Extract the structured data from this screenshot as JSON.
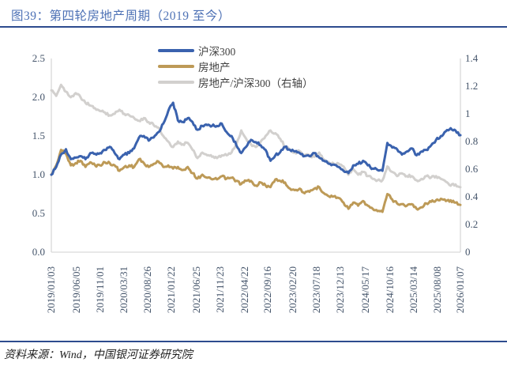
{
  "header": {
    "title": "图39：第四轮房地产周期（2019 至今）"
  },
  "footer": {
    "source": "资料来源：Wind，中国银河证券研究院"
  },
  "colors": {
    "title_blue": "#4d71b5",
    "rule_blue": "#2d4b8e",
    "axis_text": "#44546a",
    "axis_line": "#d9d9d9"
  },
  "chart_data": {
    "type": "line",
    "title": "第四轮房地产周期（2019 至今）",
    "grid": false,
    "legend_position": "top-center",
    "left_axis": {
      "range": [
        0,
        2.5
      ],
      "ticks": [
        "2.5",
        "2.0",
        "1.5",
        "1.0",
        "0.5",
        "0.0"
      ]
    },
    "right_axis": {
      "range": [
        0,
        1.4
      ],
      "ticks": [
        "1.4",
        "1.2",
        "1",
        "0.8",
        "0.6",
        "0.4",
        "0.2",
        "0"
      ]
    },
    "x_axis": {
      "start": "2019-01",
      "end": "2026-01",
      "interval": "monthly",
      "tick_labels": [
        "2019/01/03",
        "2019/06/05",
        "2019/11/01",
        "2020/03/31",
        "2020/08/26",
        "2021/01/22",
        "2021/06/25",
        "2021/11/23",
        "2022/04/22",
        "2022/09/16",
        "2023/02/20",
        "2023/07/18",
        "2023/12/13",
        "2024/05/17",
        "2024/10/16",
        "2025/03/14",
        "2025/08/08",
        "2026/01/07"
      ]
    },
    "series": [
      {
        "id": "csi300",
        "name": "沪深300",
        "axis": "left",
        "color": "#3a62ae",
        "values": [
          1.0,
          1.1,
          1.26,
          1.33,
          1.2,
          1.22,
          1.24,
          1.2,
          1.28,
          1.27,
          1.28,
          1.32,
          1.36,
          1.28,
          1.2,
          1.26,
          1.28,
          1.34,
          1.48,
          1.5,
          1.44,
          1.48,
          1.55,
          1.66,
          1.82,
          1.93,
          1.7,
          1.68,
          1.73,
          1.68,
          1.58,
          1.63,
          1.64,
          1.63,
          1.63,
          1.66,
          1.55,
          1.5,
          1.38,
          1.28,
          1.36,
          1.45,
          1.42,
          1.38,
          1.32,
          1.18,
          1.25,
          1.29,
          1.36,
          1.32,
          1.3,
          1.28,
          1.24,
          1.24,
          1.28,
          1.22,
          1.18,
          1.14,
          1.13,
          1.1,
          1.05,
          1.02,
          1.12,
          1.14,
          1.18,
          1.12,
          1.08,
          1.06,
          1.05,
          1.41,
          1.35,
          1.33,
          1.26,
          1.3,
          1.34,
          1.25,
          1.3,
          1.32,
          1.38,
          1.45,
          1.5,
          1.56,
          1.6,
          1.57,
          1.51
        ]
      },
      {
        "id": "real-estate",
        "name": "房地产",
        "axis": "left",
        "color": "#bd9a57",
        "values": [
          1.0,
          1.12,
          1.32,
          1.27,
          1.12,
          1.15,
          1.18,
          1.1,
          1.16,
          1.12,
          1.12,
          1.16,
          1.15,
          1.12,
          1.05,
          1.1,
          1.12,
          1.1,
          1.2,
          1.15,
          1.1,
          1.14,
          1.17,
          1.1,
          1.12,
          1.08,
          1.1,
          1.06,
          1.1,
          1.02,
          0.95,
          1.0,
          0.96,
          0.94,
          0.94,
          0.98,
          0.95,
          0.96,
          0.92,
          0.88,
          0.92,
          0.92,
          0.86,
          0.9,
          0.86,
          0.84,
          0.94,
          0.92,
          0.9,
          0.82,
          0.8,
          0.82,
          0.76,
          0.78,
          0.82,
          0.84,
          0.76,
          0.72,
          0.72,
          0.7,
          0.64,
          0.56,
          0.64,
          0.6,
          0.66,
          0.6,
          0.56,
          0.53,
          0.52,
          0.75,
          0.68,
          0.63,
          0.62,
          0.6,
          0.62,
          0.56,
          0.58,
          0.63,
          0.65,
          0.67,
          0.69,
          0.66,
          0.67,
          0.64,
          0.61
        ]
      },
      {
        "id": "re-over-csi300",
        "name": "房地产/沪深300（右轴）",
        "axis": "right",
        "color": "#d2d0ce",
        "values": [
          1.17,
          1.13,
          1.21,
          1.16,
          1.12,
          1.15,
          1.12,
          1.08,
          1.06,
          1.04,
          1.02,
          1.01,
          0.99,
          1.0,
          1.03,
          1.0,
          0.99,
          0.97,
          0.95,
          0.97,
          0.94,
          0.92,
          0.9,
          0.84,
          0.8,
          0.76,
          0.8,
          0.78,
          0.79,
          0.74,
          0.68,
          0.72,
          0.7,
          0.69,
          0.68,
          0.7,
          0.7,
          0.72,
          0.78,
          0.88,
          0.82,
          0.78,
          0.76,
          0.8,
          0.84,
          0.88,
          0.86,
          0.82,
          0.76,
          0.74,
          0.72,
          0.73,
          0.7,
          0.7,
          0.69,
          0.72,
          0.67,
          0.65,
          0.64,
          0.64,
          0.62,
          0.56,
          0.6,
          0.56,
          0.58,
          0.55,
          0.53,
          0.52,
          0.52,
          0.62,
          0.58,
          0.55,
          0.57,
          0.55,
          0.55,
          0.52,
          0.53,
          0.55,
          0.54,
          0.55,
          0.53,
          0.51,
          0.48,
          0.49,
          0.47
        ]
      }
    ]
  }
}
